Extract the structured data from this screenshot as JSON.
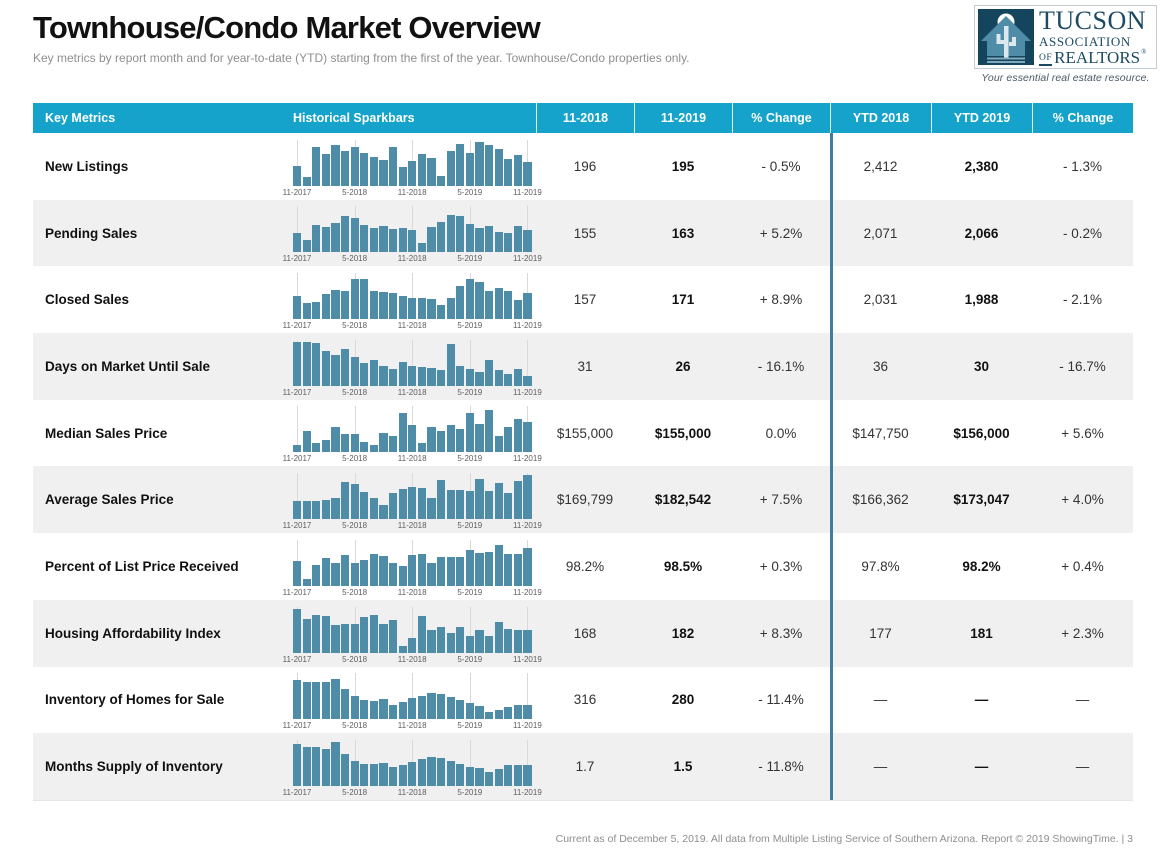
{
  "page": {
    "title": "Townhouse/Condo Market Overview",
    "subtitle": "Key metrics by report month and for year-to-date (YTD) starting from the first of the year. Townhouse/Condo properties only.",
    "footer_note": "Current as of December 5, 2019. All data from Multiple Listing Service of Southern Arizona. Report © 2019 ShowingTime.",
    "footer_separator": "|",
    "page_number": "3"
  },
  "logo": {
    "line1": "TUCSON",
    "line2": "ASSOCIATION",
    "line3_of": "OF",
    "line3_rest": "REALTORS",
    "registered": "®",
    "tagline": "Your essential real estate resource."
  },
  "colors": {
    "header_bg": "#15a2cb",
    "bar": "#4e8ca8",
    "divider": "#3e7fa0",
    "row_alt_bg": "#f0f0f0",
    "logo_navy": "#1c4a63"
  },
  "chart_data": {
    "type": "table",
    "title": "Townhouse/Condo Market Overview",
    "columns": [
      "Key Metrics",
      "Historical Sparkbars",
      "11-2018",
      "11-2019",
      "% Change",
      "YTD 2018",
      "YTD 2019",
      "% Change"
    ],
    "sparkbar_ticks": [
      "11-2017",
      "5-2018",
      "11-2018",
      "5-2019",
      "11-2019"
    ],
    "sparkbar_tick_indices": [
      0,
      6,
      12,
      18,
      24
    ],
    "rows": [
      {
        "label": "New Listings",
        "values": [
          "196",
          "195",
          "- 0.5%",
          "2,412",
          "2,380",
          "- 1.3%"
        ],
        "sparkbar": [
          0.44,
          0.2,
          0.84,
          0.7,
          0.88,
          0.76,
          0.84,
          0.72,
          0.62,
          0.56,
          0.84,
          0.4,
          0.54,
          0.68,
          0.6,
          0.22,
          0.76,
          0.9,
          0.72,
          0.95,
          0.88,
          0.8,
          0.58,
          0.66,
          0.52
        ]
      },
      {
        "label": "Pending Sales",
        "values": [
          "155",
          "163",
          "+ 5.2%",
          "2,071",
          "2,066",
          "- 0.2%"
        ],
        "sparkbar": [
          0.42,
          0.26,
          0.6,
          0.56,
          0.64,
          0.8,
          0.74,
          0.6,
          0.54,
          0.58,
          0.5,
          0.52,
          0.48,
          0.2,
          0.56,
          0.66,
          0.82,
          0.8,
          0.62,
          0.54,
          0.58,
          0.44,
          0.42,
          0.58,
          0.48
        ]
      },
      {
        "label": "Closed Sales",
        "values": [
          "157",
          "171",
          "+ 8.9%",
          "2,031",
          "1,988",
          "- 2.1%"
        ],
        "sparkbar": [
          0.5,
          0.34,
          0.38,
          0.54,
          0.64,
          0.6,
          0.86,
          0.86,
          0.6,
          0.58,
          0.56,
          0.5,
          0.46,
          0.46,
          0.44,
          0.3,
          0.46,
          0.72,
          0.86,
          0.8,
          0.62,
          0.68,
          0.62,
          0.42,
          0.56
        ]
      },
      {
        "label": "Days on Market Until Sale",
        "values": [
          "31",
          "26",
          "- 16.1%",
          "36",
          "30",
          "- 16.7%"
        ],
        "sparkbar": [
          0.95,
          0.95,
          0.92,
          0.75,
          0.66,
          0.8,
          0.62,
          0.5,
          0.56,
          0.44,
          0.36,
          0.52,
          0.44,
          0.4,
          0.38,
          0.34,
          0.9,
          0.44,
          0.36,
          0.3,
          0.56,
          0.34,
          0.26,
          0.36,
          0.22
        ]
      },
      {
        "label": "Median Sales Price",
        "values": [
          "$155,000",
          "$155,000",
          "0.0%",
          "$147,750",
          "$156,000",
          "+ 5.6%"
        ],
        "sparkbar": [
          0.16,
          0.46,
          0.2,
          0.26,
          0.56,
          0.4,
          0.4,
          0.22,
          0.16,
          0.42,
          0.36,
          0.85,
          0.6,
          0.2,
          0.56,
          0.46,
          0.6,
          0.5,
          0.85,
          0.62,
          0.92,
          0.36,
          0.56,
          0.72,
          0.66
        ]
      },
      {
        "label": "Average Sales Price",
        "values": [
          "$169,799",
          "$182,542",
          "+ 7.5%",
          "$166,362",
          "$173,047",
          "+ 4.0%"
        ],
        "sparkbar": [
          0.4,
          0.4,
          0.4,
          0.42,
          0.46,
          0.8,
          0.76,
          0.6,
          0.46,
          0.3,
          0.56,
          0.66,
          0.7,
          0.68,
          0.46,
          0.86,
          0.64,
          0.64,
          0.62,
          0.88,
          0.62,
          0.78,
          0.56,
          0.82,
          0.95
        ]
      },
      {
        "label": "Percent of List Price Received",
        "values": [
          "98.2%",
          "98.5%",
          "+ 0.3%",
          "97.8%",
          "98.2%",
          "+ 0.4%"
        ],
        "sparkbar": [
          0.55,
          0.15,
          0.45,
          0.6,
          0.5,
          0.66,
          0.5,
          0.56,
          0.7,
          0.64,
          0.5,
          0.44,
          0.66,
          0.7,
          0.5,
          0.62,
          0.62,
          0.62,
          0.78,
          0.72,
          0.74,
          0.88,
          0.7,
          0.7,
          0.82
        ]
      },
      {
        "label": "Housing Affordability Index",
        "values": [
          "168",
          "182",
          "+ 8.3%",
          "177",
          "181",
          "+ 2.3%"
        ],
        "sparkbar": [
          0.95,
          0.72,
          0.82,
          0.8,
          0.6,
          0.62,
          0.62,
          0.78,
          0.82,
          0.62,
          0.7,
          0.15,
          0.32,
          0.8,
          0.5,
          0.56,
          0.42,
          0.56,
          0.36,
          0.5,
          0.36,
          0.66,
          0.52,
          0.48,
          0.5
        ]
      },
      {
        "label": "Inventory of Homes for Sale",
        "values": [
          "316",
          "280",
          "- 11.4%",
          "—",
          "—",
          "—"
        ],
        "sparkbar": [
          0.85,
          0.8,
          0.8,
          0.8,
          0.88,
          0.65,
          0.5,
          0.42,
          0.4,
          0.44,
          0.32,
          0.38,
          0.46,
          0.5,
          0.58,
          0.55,
          0.48,
          0.42,
          0.35,
          0.28,
          0.16,
          0.2,
          0.26,
          0.3,
          0.3
        ]
      },
      {
        "label": "Months Supply of Inventory",
        "values": [
          "1.7",
          "1.5",
          "- 11.8%",
          "—",
          "—",
          "—"
        ],
        "sparkbar": [
          0.9,
          0.85,
          0.85,
          0.8,
          0.95,
          0.7,
          0.55,
          0.48,
          0.48,
          0.5,
          0.42,
          0.46,
          0.52,
          0.58,
          0.62,
          0.6,
          0.55,
          0.48,
          0.42,
          0.38,
          0.3,
          0.36,
          0.46,
          0.46,
          0.46
        ]
      }
    ]
  }
}
